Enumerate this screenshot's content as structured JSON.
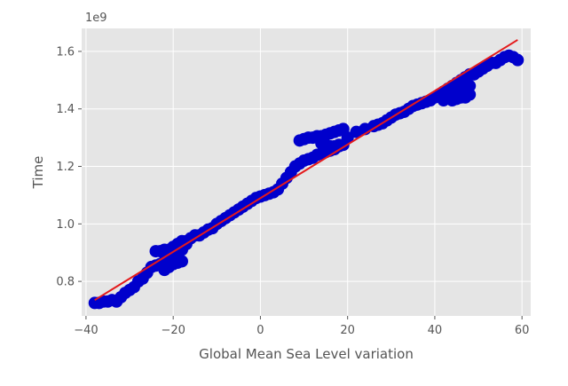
{
  "chart_data": {
    "type": "scatter",
    "title": "",
    "xlabel": "Global Mean Sea Level variation",
    "ylabel": "Time",
    "y_offset_label": "1e9",
    "xlim": [
      -41,
      62
    ],
    "ylim": [
      0.68,
      1.68
    ],
    "grid": true,
    "x_ticks": [
      -40,
      -20,
      0,
      20,
      40,
      60
    ],
    "x_tick_labels": [
      "−40",
      "−20",
      "0",
      "20",
      "40",
      "60"
    ],
    "y_ticks": [
      0.8,
      1.0,
      1.2,
      1.4,
      1.6
    ],
    "y_tick_labels": [
      "0.8",
      "1.0",
      "1.2",
      "1.4",
      "1.6"
    ],
    "colors": {
      "plot_background": "#e5e5e5",
      "grid": "#ffffff",
      "scatter": "#0000cc",
      "fit_line": "#e41a1c"
    },
    "series": [
      {
        "kind": "scatter",
        "x": [
          -38,
          -37,
          -36,
          -35,
          -34,
          -33,
          -32,
          -31,
          -30,
          -29,
          -28,
          -27,
          -26,
          -25,
          -24,
          -23,
          -22,
          -21,
          -20,
          -19,
          -18,
          -17,
          -16,
          -15,
          -14,
          -13,
          -12,
          -11,
          -10,
          -9,
          -8,
          -7,
          -6,
          -5,
          -4,
          -3,
          -2,
          -1,
          0,
          1,
          2,
          3,
          4,
          5,
          6,
          7,
          8,
          9,
          10,
          11,
          12,
          13,
          14,
          15,
          16,
          17,
          18,
          19,
          20,
          22,
          24,
          26,
          27,
          28,
          29,
          30,
          31,
          32,
          33,
          34,
          35,
          36,
          37,
          38,
          39,
          40,
          41,
          42,
          43,
          44,
          45,
          46,
          47,
          48,
          49,
          50,
          51,
          52,
          53,
          54,
          55,
          56,
          57,
          58,
          59,
          -24,
          -23,
          -22,
          -21,
          -20,
          -19,
          -18,
          -17,
          -22,
          -21,
          -20,
          -19,
          -18,
          9,
          10,
          11,
          12,
          13,
          14,
          15,
          16,
          17,
          18,
          19,
          14,
          15,
          16,
          17,
          18,
          42,
          43,
          44,
          45,
          46,
          47,
          48,
          44,
          45,
          46,
          47,
          48
        ],
        "y": [
          0.725,
          0.725,
          0.73,
          0.73,
          0.735,
          0.73,
          0.745,
          0.76,
          0.77,
          0.78,
          0.8,
          0.81,
          0.83,
          0.85,
          0.855,
          0.86,
          0.87,
          0.88,
          0.88,
          0.9,
          0.91,
          0.93,
          0.95,
          0.96,
          0.96,
          0.97,
          0.98,
          0.985,
          1.0,
          1.01,
          1.02,
          1.03,
          1.04,
          1.05,
          1.06,
          1.07,
          1.08,
          1.09,
          1.095,
          1.1,
          1.105,
          1.11,
          1.12,
          1.14,
          1.16,
          1.18,
          1.2,
          1.21,
          1.22,
          1.225,
          1.23,
          1.24,
          1.245,
          1.25,
          1.255,
          1.26,
          1.27,
          1.275,
          1.3,
          1.32,
          1.33,
          1.34,
          1.345,
          1.35,
          1.36,
          1.37,
          1.38,
          1.385,
          1.39,
          1.4,
          1.41,
          1.415,
          1.42,
          1.425,
          1.43,
          1.44,
          1.45,
          1.46,
          1.47,
          1.48,
          1.49,
          1.5,
          1.51,
          1.52,
          1.52,
          1.53,
          1.54,
          1.55,
          1.56,
          1.56,
          1.57,
          1.58,
          1.585,
          1.58,
          1.57,
          0.905,
          0.905,
          0.91,
          0.91,
          0.92,
          0.93,
          0.94,
          0.94,
          0.84,
          0.85,
          0.86,
          0.865,
          0.87,
          1.29,
          1.295,
          1.3,
          1.3,
          1.305,
          1.305,
          1.31,
          1.315,
          1.32,
          1.325,
          1.33,
          1.28,
          1.275,
          1.27,
          1.27,
          1.275,
          1.43,
          1.44,
          1.45,
          1.46,
          1.46,
          1.47,
          1.48,
          1.43,
          1.435,
          1.44,
          1.44,
          1.45
        ]
      },
      {
        "kind": "line",
        "x": [
          -38,
          59
        ],
        "y": [
          0.735,
          1.64
        ]
      }
    ]
  }
}
